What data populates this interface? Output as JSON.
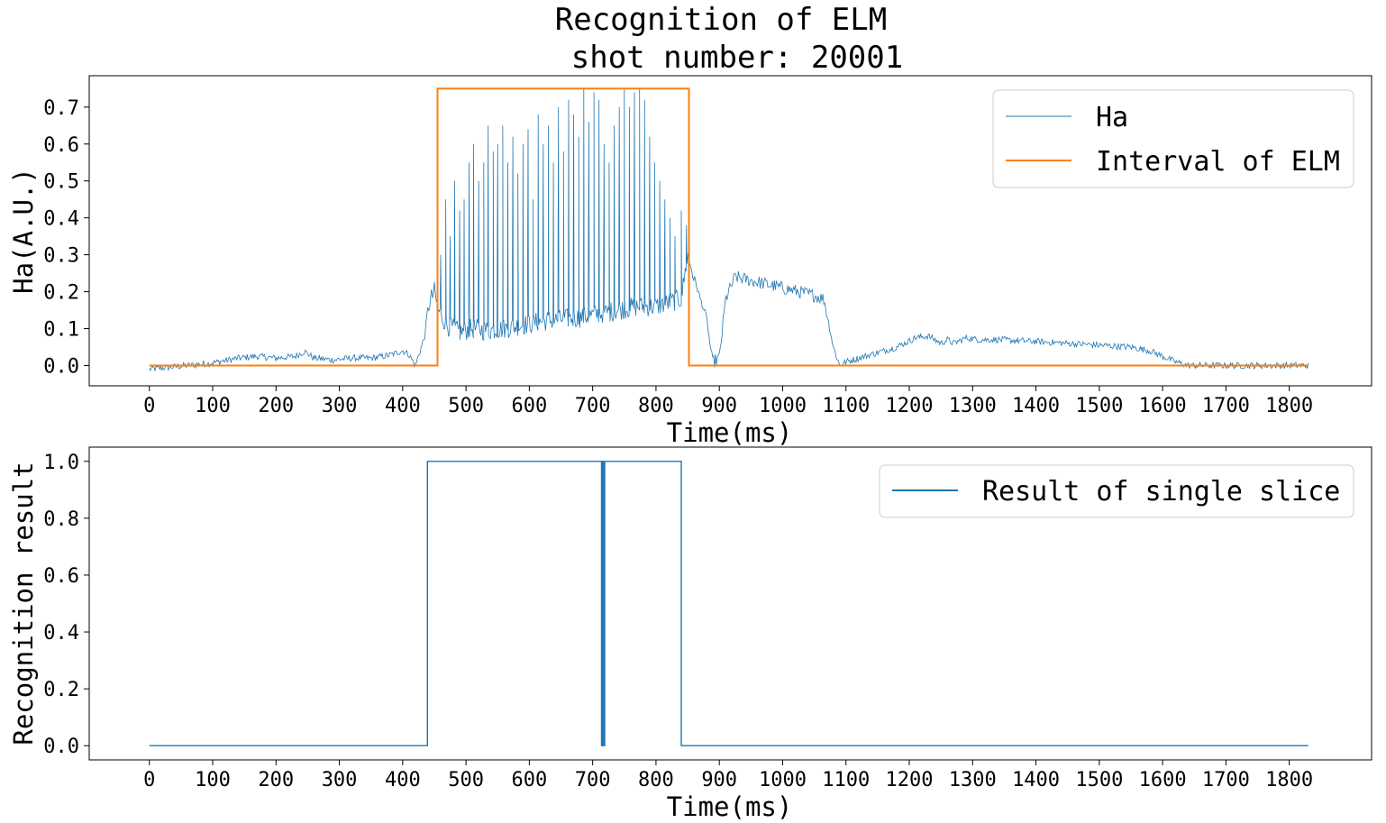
{
  "figure": {
    "title_line1": "Recognition of ELM",
    "title_line2": "shot number: 20001"
  },
  "colors": {
    "blue": "#1f77b4",
    "orange": "#ff7f0e"
  },
  "chart_data": [
    {
      "type": "line",
      "xlabel": "Time(ms)",
      "ylabel": "Ha(A.U.)",
      "xlim": [
        -95,
        1930
      ],
      "ylim": [
        -0.055,
        0.785
      ],
      "xticks": [
        0,
        100,
        200,
        300,
        400,
        500,
        600,
        700,
        800,
        900,
        1000,
        1100,
        1200,
        1300,
        1400,
        1500,
        1600,
        1700,
        1800
      ],
      "yticks": [
        0.0,
        0.1,
        0.2,
        0.3,
        0.4,
        0.5,
        0.6,
        0.7
      ],
      "ytick_labels": [
        "0.0",
        "0.1",
        "0.2",
        "0.3",
        "0.4",
        "0.5",
        "0.6",
        "0.7"
      ],
      "legend_position": "top-right",
      "series": [
        {
          "name": "Ha",
          "color": "#1f77b4",
          "note_style": "noisy thin line",
          "x": [
            0,
            30,
            60,
            90,
            110,
            140,
            170,
            200,
            230,
            245,
            260,
            290,
            320,
            350,
            380,
            400,
            410,
            420,
            435,
            440,
            450,
            456,
            470,
            490,
            510,
            530,
            560,
            590,
            620,
            650,
            680,
            710,
            740,
            770,
            800,
            820,
            840,
            850,
            870,
            880,
            885,
            890,
            900,
            910,
            925,
            950,
            975,
            1000,
            1025,
            1050,
            1065,
            1070,
            1080,
            1090,
            1100,
            1140,
            1180,
            1210,
            1230,
            1250,
            1260,
            1270,
            1290,
            1310,
            1340,
            1400,
            1450,
            1500,
            1550,
            1580,
            1600,
            1620,
            1640,
            1700,
            1830
          ],
          "y": [
            -0.01,
            -0.005,
            0.0,
            0.005,
            0.01,
            0.02,
            0.025,
            0.02,
            0.025,
            0.038,
            0.02,
            0.015,
            0.02,
            0.02,
            0.028,
            0.04,
            0.03,
            0.0,
            0.08,
            0.16,
            0.2,
            0.15,
            0.11,
            0.09,
            0.1,
            0.095,
            0.1,
            0.11,
            0.12,
            0.125,
            0.13,
            0.14,
            0.15,
            0.16,
            0.16,
            0.17,
            0.18,
            0.3,
            0.18,
            0.13,
            0.06,
            0.01,
            0.02,
            0.18,
            0.24,
            0.23,
            0.22,
            0.21,
            0.2,
            0.19,
            0.18,
            0.14,
            0.05,
            0.0,
            0.01,
            0.03,
            0.05,
            0.075,
            0.08,
            0.06,
            0.07,
            0.06,
            0.075,
            0.07,
            0.07,
            0.065,
            0.06,
            0.055,
            0.05,
            0.04,
            0.025,
            0.01,
            0.0,
            0.0,
            0.0
          ],
          "elm_spikes": {
            "x": [
              460,
              468,
              475,
              482,
              490,
              497,
              505,
              512,
              520,
              528,
              535,
              543,
              550,
              558,
              566,
              574,
              582,
              590,
              598,
              606,
              614,
              622,
              630,
              638,
              646,
              654,
              662,
              670,
              678,
              686,
              694,
              702,
              710,
              718,
              726,
              734,
              742,
              750,
              758,
              766,
              774,
              782,
              790,
              798,
              806,
              814,
              822,
              830,
              840,
              848
            ],
            "peak": [
              0.3,
              0.45,
              0.35,
              0.5,
              0.42,
              0.45,
              0.55,
              0.6,
              0.5,
              0.55,
              0.65,
              0.58,
              0.6,
              0.65,
              0.55,
              0.62,
              0.52,
              0.6,
              0.64,
              0.45,
              0.68,
              0.6,
              0.65,
              0.55,
              0.7,
              0.58,
              0.72,
              0.68,
              0.62,
              0.75,
              0.66,
              0.74,
              0.72,
              0.6,
              0.55,
              0.65,
              0.7,
              0.75,
              0.7,
              0.74,
              0.75,
              0.72,
              0.62,
              0.55,
              0.5,
              0.45,
              0.4,
              0.35,
              0.42,
              0.38
            ]
          }
        },
        {
          "name": "Interval of ELM",
          "color": "#ff7f0e",
          "x": [
            0,
            455,
            455,
            852,
            852,
            1830
          ],
          "y": [
            0,
            0,
            0.75,
            0.75,
            0,
            0
          ]
        }
      ]
    },
    {
      "type": "line",
      "xlabel": "Time(ms)",
      "ylabel": "Recognition result",
      "xlim": [
        -95,
        1930
      ],
      "ylim": [
        -0.05,
        1.05
      ],
      "xticks": [
        0,
        100,
        200,
        300,
        400,
        500,
        600,
        700,
        800,
        900,
        1000,
        1100,
        1200,
        1300,
        1400,
        1500,
        1600,
        1700,
        1800
      ],
      "yticks": [
        0.0,
        0.2,
        0.4,
        0.6,
        0.8,
        1.0
      ],
      "ytick_labels": [
        "0.0",
        "0.2",
        "0.4",
        "0.6",
        "0.8",
        "1.0"
      ],
      "legend_position": "top-right",
      "series": [
        {
          "name": "Result of single slice",
          "color": "#1f77b4",
          "x": [
            0,
            439,
            439,
            714,
            714,
            716,
            716,
            717,
            717,
            719,
            719,
            840,
            840,
            1830
          ],
          "y": [
            0,
            0,
            1,
            1,
            0,
            0,
            1,
            1,
            0,
            0,
            1,
            1,
            0,
            0
          ]
        }
      ]
    }
  ]
}
